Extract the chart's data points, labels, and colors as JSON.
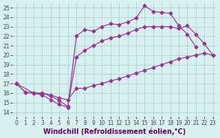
{
  "background_color": "#d8f0f0",
  "grid_color": "#b0d8d8",
  "line_color": "#993399",
  "marker": "D",
  "markersize": 2.5,
  "linewidth": 0.9,
  "xlabel": "Windchill (Refroidissement éolien,°C)",
  "xlabel_fontsize": 7.0,
  "tick_fontsize": 5.5,
  "xlim": [
    -0.5,
    23.5
  ],
  "ylim": [
    13.5,
    25.5
  ],
  "xticks": [
    0,
    1,
    2,
    3,
    4,
    5,
    6,
    7,
    8,
    9,
    10,
    11,
    12,
    13,
    14,
    15,
    16,
    17,
    18,
    19,
    20,
    21,
    22,
    23
  ],
  "yticks": [
    14,
    15,
    16,
    17,
    18,
    19,
    20,
    21,
    22,
    23,
    24,
    25
  ],
  "series": [
    {
      "x": [
        0,
        1,
        2,
        3,
        4,
        5,
        6,
        7,
        8,
        9,
        10,
        11,
        12,
        13,
        14,
        15,
        16,
        17,
        18,
        19,
        20,
        21,
        22,
        23
      ],
      "y": [
        17.0,
        16.1,
        16.0,
        16.0,
        15.8,
        15.5,
        15.3,
        16.5,
        16.5,
        16.8,
        17.0,
        17.3,
        17.5,
        17.8,
        18.1,
        18.4,
        18.7,
        19.0,
        19.3,
        19.6,
        19.8,
        20.0,
        20.2,
        20.0
      ]
    },
    {
      "x": [
        0,
        1,
        2,
        3,
        4,
        5,
        6,
        7,
        8,
        9,
        10,
        11,
        12,
        13,
        14,
        15,
        16,
        17,
        18,
        19,
        20,
        21
      ],
      "y": [
        17.0,
        16.1,
        16.0,
        15.8,
        15.3,
        14.8,
        14.5,
        22.0,
        22.7,
        22.5,
        23.0,
        23.3,
        23.2,
        23.5,
        23.9,
        25.2,
        24.6,
        24.5,
        24.4,
        23.1,
        22.2,
        20.9
      ]
    },
    {
      "x": [
        0,
        2,
        3,
        4,
        5,
        6,
        7,
        8,
        9,
        10,
        11,
        12,
        13,
        14,
        15,
        16,
        17,
        18,
        19,
        20,
        21,
        22,
        23
      ],
      "y": [
        17.0,
        16.0,
        16.0,
        15.7,
        15.2,
        14.6,
        19.8,
        20.5,
        21.0,
        21.5,
        21.8,
        22.0,
        22.3,
        22.7,
        23.0,
        23.0,
        23.0,
        23.0,
        22.8,
        23.1,
        22.2,
        21.2,
        20.0
      ]
    }
  ]
}
